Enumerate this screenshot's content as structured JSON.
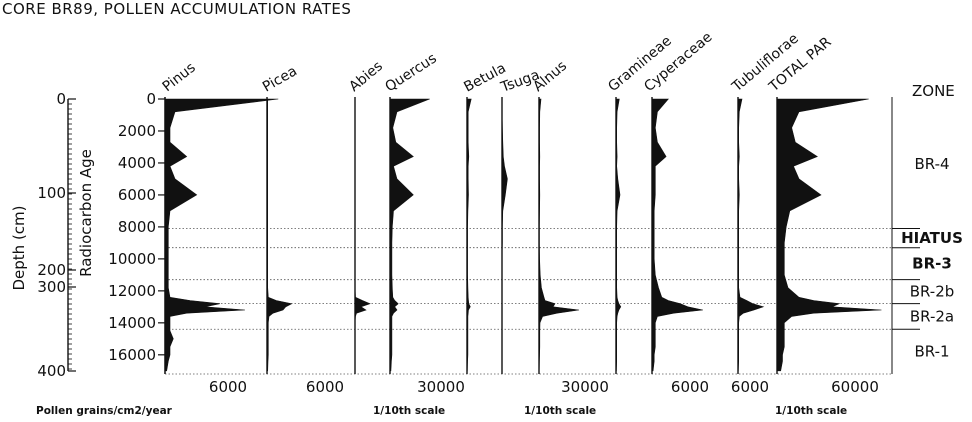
{
  "chart_data": {
    "type": "area",
    "title": "CORE BR89, POLLEN ACCUMULATION RATES",
    "ylabel_depth": "Depth (cm)",
    "ylabel_age": "Radiocarbon Age",
    "depth_ticks": [
      "0",
      "100",
      "200",
      "300",
      "400"
    ],
    "age_ticks": [
      "0",
      "2000",
      "4000",
      "6000",
      "8000",
      "10000",
      "12000",
      "14000",
      "16000"
    ],
    "ylim_age": [
      0,
      17200
    ],
    "zones_header": "ZONE",
    "zones": [
      {
        "label": "BR-4",
        "from": 0,
        "to": 8100
      },
      {
        "label": "HIATUS",
        "from": 8100,
        "to": 9300
      },
      {
        "label": "BR-3",
        "from": 9300,
        "to": 11300
      },
      {
        "label": "BR-2b",
        "from": 11300,
        "to": 12800
      },
      {
        "label": "BR-2a",
        "from": 12800,
        "to": 14400
      },
      {
        "label": "BR-1",
        "from": 14400,
        "to": 17200
      }
    ],
    "xlabel": "Pollen grains/cm2/year",
    "scale_note": "1/10th scale",
    "age_axis": [
      0,
      800,
      1800,
      2700,
      3600,
      4200,
      5000,
      6000,
      7000,
      8000,
      9000,
      10000,
      11000,
      11800,
      12400,
      12600,
      12800,
      13000,
      13200,
      13400,
      13600,
      14000,
      14500,
      15000,
      15500,
      16000,
      16400,
      17000
    ],
    "series": [
      {
        "name": "Pinus",
        "tick": "6000",
        "values": [
          6800,
          600,
          300,
          300,
          1300,
          300,
          600,
          1900,
          300,
          200,
          200,
          200,
          200,
          200,
          300,
          1500,
          3300,
          2400,
          4800,
          1300,
          300,
          300,
          300,
          500,
          300,
          300,
          200,
          100
        ]
      },
      {
        "name": "Picea",
        "tick": "6000",
        "values": [
          100,
          100,
          100,
          100,
          100,
          100,
          100,
          100,
          100,
          100,
          100,
          100,
          100,
          100,
          200,
          1400,
          3700,
          2800,
          2400,
          900,
          300,
          200,
          200,
          200,
          200,
          200,
          150,
          100
        ]
      },
      {
        "name": "Abies",
        "tick": "",
        "values": [
          0,
          0,
          0,
          0,
          0,
          0,
          0,
          0,
          0,
          0,
          0,
          0,
          0,
          0,
          100,
          1500,
          3000,
          1200,
          2200,
          300,
          100,
          0,
          0,
          0,
          0,
          0,
          0,
          0
        ]
      },
      {
        "name": "Quercus",
        "tick": "30000",
        "values": [
          17000,
          3000,
          1200,
          2500,
          10000,
          1500,
          3000,
          10000,
          1500,
          1000,
          800,
          800,
          800,
          1000,
          1200,
          2000,
          3500,
          2000,
          3000,
          1500,
          800,
          800,
          800,
          800,
          800,
          800,
          600,
          400
        ]
      },
      {
        "name": "Betula",
        "tick": "",
        "values": [
          1400,
          400,
          400,
          400,
          600,
          400,
          400,
          500,
          300,
          200,
          200,
          200,
          200,
          300,
          400,
          500,
          600,
          1100,
          500,
          400,
          300,
          300,
          300,
          300,
          300,
          300,
          200,
          100
        ]
      },
      {
        "name": "Tsuga",
        "tick": "",
        "values": [
          0,
          0,
          100,
          200,
          300,
          600,
          1300,
          800,
          200,
          100,
          100,
          0,
          0,
          0,
          0,
          0,
          0,
          0,
          0,
          0,
          0,
          0,
          0,
          0,
          0,
          0,
          0,
          0
        ]
      },
      {
        "name": "Alnus",
        "tick": "30000",
        "values": [
          1000,
          400,
          300,
          300,
          400,
          300,
          300,
          400,
          300,
          200,
          200,
          300,
          600,
          1200,
          2500,
          3000,
          8000,
          7000,
          20000,
          9000,
          1800,
          500,
          400,
          400,
          400,
          300,
          200,
          100
        ]
      },
      {
        "name": "Gramineae",
        "tick": "",
        "values": [
          900,
          300,
          200,
          200,
          300,
          200,
          500,
          1100,
          300,
          200,
          200,
          200,
          200,
          200,
          300,
          500,
          800,
          1300,
          800,
          500,
          300,
          200,
          200,
          200,
          200,
          200,
          200,
          100
        ]
      },
      {
        "name": "Cyperaceae",
        "tick": "6000",
        "values": [
          1500,
          500,
          300,
          500,
          1300,
          300,
          300,
          300,
          200,
          200,
          200,
          200,
          300,
          600,
          900,
          1500,
          2600,
          3300,
          4700,
          2000,
          500,
          300,
          300,
          300,
          300,
          200,
          200,
          100
        ]
      },
      {
        "name": "Tubuliflorae",
        "tick": "6000",
        "values": [
          600,
          200,
          100,
          100,
          200,
          100,
          100,
          200,
          100,
          100,
          100,
          100,
          100,
          100,
          300,
          1300,
          2200,
          3800,
          2400,
          800,
          200,
          100,
          100,
          100,
          100,
          100,
          100,
          50
        ]
      },
      {
        "name": "TOTAL PAR",
        "tick": "60000",
        "values": [
          50000,
          12000,
          8000,
          10000,
          22000,
          9000,
          12000,
          24000,
          7000,
          5000,
          4000,
          4000,
          4000,
          6000,
          12000,
          20000,
          34000,
          30000,
          57000,
          20000,
          8000,
          4000,
          4000,
          4000,
          4000,
          3000,
          3000,
          2000
        ]
      }
    ]
  }
}
